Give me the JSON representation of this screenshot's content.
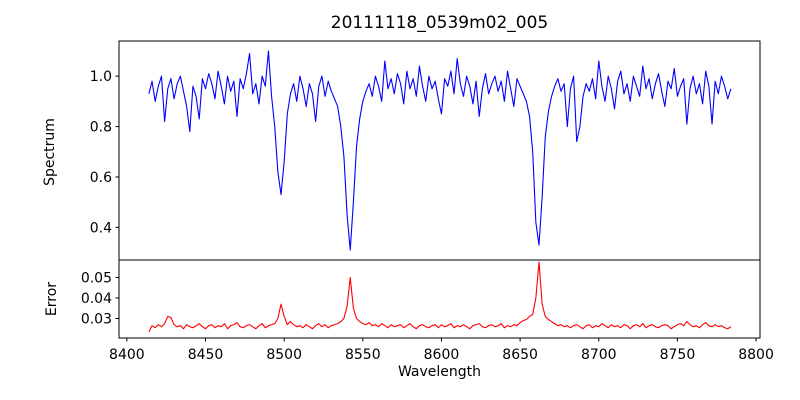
{
  "figure": {
    "title": "20111118_0539m02_005",
    "xlabel": "Wavelength",
    "spectrum_ylabel": "Spectrum",
    "error_ylabel": "Error",
    "background_color": "#ffffff",
    "spine_color": "#000000"
  },
  "chart_data": [
    {
      "type": "line",
      "name": "spectrum",
      "ylabel": "Spectrum",
      "series_color": "#0000ff",
      "grid": false,
      "legend": "none",
      "x_start": 8414,
      "x_step": 2,
      "xlim": [
        8395,
        8802.5
      ],
      "ylim": [
        0.2705,
        1.1395
      ],
      "yticks": [
        0.4,
        0.6,
        0.8,
        1.0
      ],
      "ytick_labels": [
        "0.4",
        "0.6",
        "0.8",
        "1.0"
      ],
      "xticks": [],
      "xtick_labels": [],
      "values": [
        0.93,
        0.98,
        0.9,
        0.96,
        1.0,
        0.82,
        0.95,
        0.99,
        0.91,
        0.97,
        1.0,
        0.94,
        0.88,
        0.78,
        0.96,
        0.92,
        0.83,
        0.99,
        0.95,
        1.01,
        0.97,
        0.91,
        1.02,
        0.96,
        0.89,
        1.0,
        0.94,
        0.98,
        0.84,
        0.99,
        0.95,
        1.01,
        1.09,
        0.93,
        0.97,
        0.89,
        1.0,
        0.96,
        1.1,
        0.92,
        0.8,
        0.62,
        0.53,
        0.66,
        0.85,
        0.93,
        0.97,
        0.9,
        1.0,
        0.95,
        0.88,
        0.97,
        0.93,
        0.82,
        0.96,
        1.0,
        0.92,
        0.98,
        0.94,
        0.91,
        0.88,
        0.8,
        0.68,
        0.45,
        0.31,
        0.5,
        0.72,
        0.83,
        0.9,
        0.94,
        0.97,
        0.92,
        1.0,
        0.96,
        0.9,
        1.06,
        0.95,
        0.99,
        0.93,
        1.01,
        0.97,
        0.89,
        1.02,
        0.95,
        0.99,
        0.92,
        1.04,
        0.96,
        0.9,
        1.0,
        0.95,
        0.98,
        0.91,
        0.85,
        0.99,
        0.96,
        1.02,
        0.93,
        1.07,
        0.97,
        0.92,
        1.0,
        0.96,
        0.89,
        0.98,
        0.84,
        0.95,
        1.01,
        0.93,
        0.97,
        1.0,
        0.94,
        0.98,
        0.9,
        1.02,
        0.95,
        0.88,
        0.99,
        0.96,
        0.93,
        0.9,
        0.84,
        0.7,
        0.42,
        0.33,
        0.52,
        0.76,
        0.86,
        0.92,
        0.96,
        0.99,
        0.94,
        0.97,
        0.8,
        0.95,
        1.0,
        0.74,
        0.8,
        0.92,
        0.97,
        0.94,
        0.99,
        0.91,
        1.06,
        0.96,
        0.9,
        1.0,
        0.95,
        0.87,
        0.98,
        1.02,
        0.93,
        0.97,
        0.9,
        1.0,
        0.96,
        0.92,
        1.04,
        0.95,
        0.99,
        0.91,
        0.97,
        1.01,
        0.94,
        0.88,
        0.98,
        0.95,
        1.03,
        0.92,
        0.96,
        0.99,
        0.81,
        0.95,
        1.0,
        0.93,
        0.97,
        0.89,
        1.02,
        0.96,
        0.81,
        0.98,
        0.93,
        1.0,
        0.96,
        0.91,
        0.95
      ],
      "absorption_features": [
        {
          "wavelength": 8498,
          "depth": 0.53
        },
        {
          "wavelength": 8542,
          "depth": 0.31
        },
        {
          "wavelength": 8662,
          "depth": 0.33
        }
      ]
    },
    {
      "type": "line",
      "name": "error",
      "ylabel": "Error",
      "xlabel": "Wavelength",
      "series_color": "#ff0000",
      "grid": false,
      "legend": "none",
      "x_start": 8414,
      "x_step": 2,
      "xlim": [
        8395,
        8802.5
      ],
      "ylim": [
        0.0205,
        0.0585
      ],
      "yticks": [
        0.03,
        0.04,
        0.05
      ],
      "ytick_labels": [
        "0.03",
        "0.04",
        "0.05"
      ],
      "xticks": [
        8400,
        8450,
        8500,
        8550,
        8600,
        8650,
        8700,
        8750,
        8800
      ],
      "xtick_labels": [
        "8400",
        "8450",
        "8500",
        "8550",
        "8600",
        "8650",
        "8700",
        "8750",
        "8800"
      ],
      "values": [
        0.0235,
        0.0265,
        0.0255,
        0.027,
        0.026,
        0.0275,
        0.031,
        0.0305,
        0.027,
        0.026,
        0.0265,
        0.025,
        0.027,
        0.026,
        0.0255,
        0.0265,
        0.0275,
        0.026,
        0.025,
        0.0265,
        0.027,
        0.0255,
        0.0265,
        0.026,
        0.0275,
        0.025,
        0.0265,
        0.027,
        0.028,
        0.026,
        0.0255,
        0.0265,
        0.027,
        0.026,
        0.025,
        0.0265,
        0.0275,
        0.0255,
        0.0265,
        0.027,
        0.0275,
        0.03,
        0.037,
        0.031,
        0.027,
        0.0285,
        0.027,
        0.026,
        0.0265,
        0.0255,
        0.027,
        0.026,
        0.025,
        0.0265,
        0.0275,
        0.026,
        0.027,
        0.0255,
        0.0265,
        0.027,
        0.0275,
        0.0285,
        0.03,
        0.036,
        0.05,
        0.035,
        0.03,
        0.0285,
        0.0275,
        0.027,
        0.028,
        0.0265,
        0.027,
        0.026,
        0.0275,
        0.0265,
        0.0255,
        0.027,
        0.026,
        0.0265,
        0.027,
        0.0255,
        0.0265,
        0.0275,
        0.026,
        0.025,
        0.0265,
        0.027,
        0.026,
        0.0255,
        0.0265,
        0.027,
        0.0255,
        0.027,
        0.026,
        0.0265,
        0.0275,
        0.0255,
        0.0265,
        0.026,
        0.027,
        0.026,
        0.025,
        0.0265,
        0.027,
        0.0275,
        0.026,
        0.0255,
        0.0265,
        0.027,
        0.026,
        0.0265,
        0.0275,
        0.0255,
        0.0265,
        0.026,
        0.027,
        0.0265,
        0.028,
        0.029,
        0.0295,
        0.031,
        0.032,
        0.04,
        0.0575,
        0.037,
        0.031,
        0.0295,
        0.0285,
        0.0275,
        0.0265,
        0.027,
        0.026,
        0.0265,
        0.0255,
        0.0265,
        0.027,
        0.026,
        0.025,
        0.0265,
        0.027,
        0.0255,
        0.0265,
        0.026,
        0.0275,
        0.0265,
        0.0255,
        0.027,
        0.026,
        0.0265,
        0.0255,
        0.027,
        0.0265,
        0.025,
        0.0265,
        0.027,
        0.026,
        0.0275,
        0.0255,
        0.0265,
        0.027,
        0.026,
        0.0255,
        0.0265,
        0.027,
        0.0265,
        0.025,
        0.026,
        0.027,
        0.0275,
        0.0265,
        0.0285,
        0.027,
        0.026,
        0.0265,
        0.0255,
        0.027,
        0.028,
        0.0265,
        0.026,
        0.027,
        0.026,
        0.0265,
        0.0255,
        0.025,
        0.026
      ],
      "error_peaks": [
        {
          "wavelength": 8498,
          "value": 0.037
        },
        {
          "wavelength": 8542,
          "value": 0.05
        },
        {
          "wavelength": 8662,
          "value": 0.0575
        }
      ]
    }
  ]
}
